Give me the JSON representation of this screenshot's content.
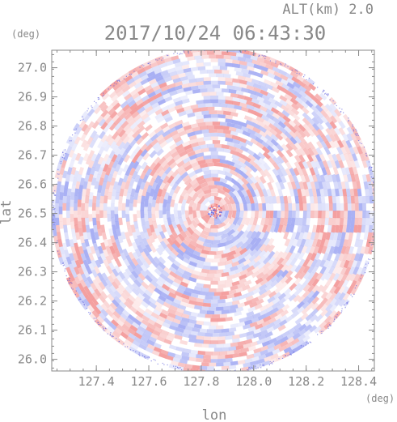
{
  "header": {
    "altitude_label": "ALT(km) 2.0",
    "timestamp": "2017/10/24 06:43:30"
  },
  "chart_data": {
    "type": "heatmap",
    "title": "2017/10/24 06:43:30",
    "subtitle": "ALT(km) 2.0",
    "xlabel": "lon",
    "ylabel": "lat",
    "x_unit": "(deg)",
    "y_unit": "(deg)",
    "xlim": [
      127.23,
      128.46
    ],
    "ylim": [
      25.96,
      27.06
    ],
    "x_ticks": [
      "127.4",
      "127.6",
      "127.8",
      "128.0",
      "128.2",
      "128.4"
    ],
    "y_ticks": [
      "26.0",
      "26.1",
      "26.2",
      "26.3",
      "26.4",
      "26.5",
      "26.6",
      "26.7",
      "26.8",
      "26.9",
      "27.0"
    ],
    "center": {
      "lon": 127.85,
      "lat": 26.51
    },
    "radius_deg_lat": 0.56,
    "grid": false,
    "colors": {
      "positive": "#f08080",
      "negative": "#8c96f0",
      "neutral": "#ffffff",
      "axis": "#888888",
      "noise": "#6a6ae0"
    }
  }
}
